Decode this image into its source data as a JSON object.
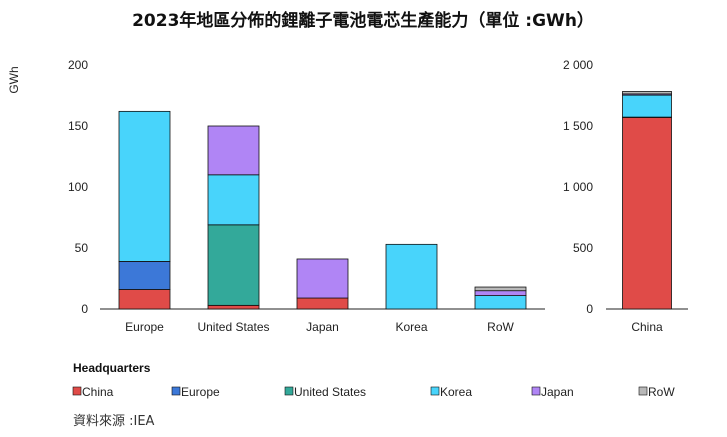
{
  "title": "2023年地區分佈的鋰離子電池電芯生產能力（單位 :GWh）",
  "source": "資料來源 :IEA",
  "colors": {
    "China": "#e04b48",
    "Europe": "#3c78d8",
    "United States": "#33a99a",
    "Korea": "#48d4fb",
    "Japan": "#b085f5",
    "RoW": "#b8b8b8"
  },
  "chart_data": [
    {
      "type": "bar",
      "stacked": true,
      "ylabel": "GWh",
      "ylim": [
        0,
        200
      ],
      "yticks": [
        "200",
        "150",
        "100",
        "50",
        "0"
      ],
      "categories": [
        "Europe",
        "United States",
        "Japan",
        "Korea",
        "RoW"
      ],
      "series": [
        {
          "name": "China",
          "values": [
            16,
            3,
            9,
            0,
            0
          ]
        },
        {
          "name": "Europe",
          "values": [
            23,
            0,
            0,
            0,
            0
          ]
        },
        {
          "name": "United States",
          "values": [
            0,
            66,
            0,
            0,
            0
          ]
        },
        {
          "name": "Korea",
          "values": [
            123,
            41,
            0,
            53,
            11
          ]
        },
        {
          "name": "Japan",
          "values": [
            0,
            40,
            32,
            0,
            4
          ]
        },
        {
          "name": "RoW",
          "values": [
            0,
            0,
            0,
            0,
            3
          ]
        }
      ],
      "grid": false
    },
    {
      "type": "bar",
      "stacked": true,
      "ylim": [
        0,
        2000
      ],
      "yticks": [
        "2 000",
        "1 500",
        "1 000",
        "500",
        "0"
      ],
      "categories": [
        "China"
      ],
      "series": [
        {
          "name": "China",
          "values": [
            1570
          ]
        },
        {
          "name": "Europe",
          "values": [
            3
          ]
        },
        {
          "name": "United States",
          "values": [
            0
          ]
        },
        {
          "name": "Korea",
          "values": [
            180
          ]
        },
        {
          "name": "Japan",
          "values": [
            10
          ]
        },
        {
          "name": "RoW",
          "values": [
            20
          ]
        }
      ],
      "grid": false
    }
  ],
  "legend": {
    "title": "Headquarters",
    "items": [
      "China",
      "Europe",
      "United States",
      "Korea",
      "Japan",
      "RoW"
    ]
  }
}
